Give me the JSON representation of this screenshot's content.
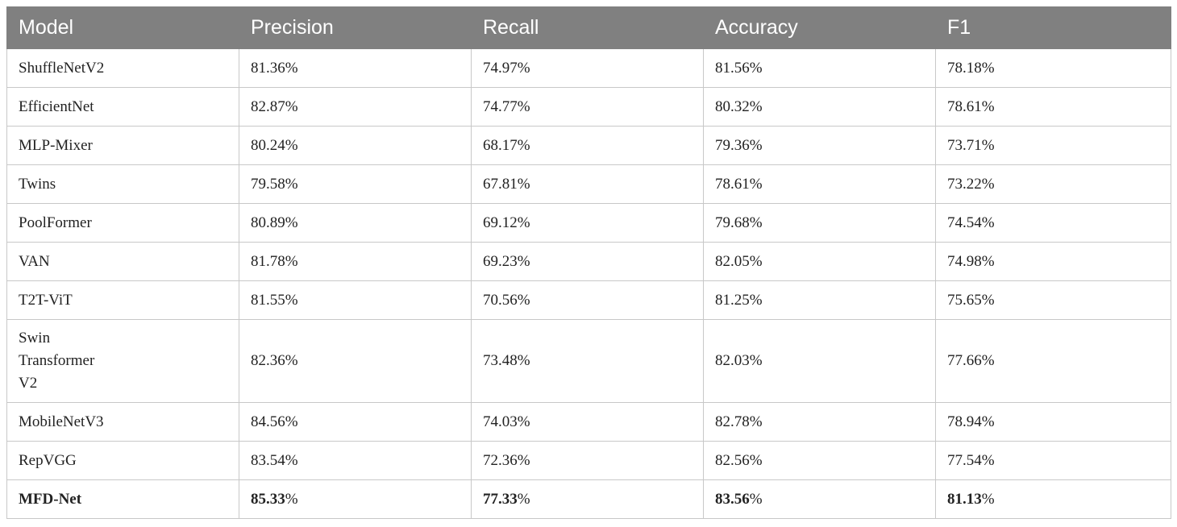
{
  "table": {
    "headers": [
      "Model",
      "Precision",
      "Recall",
      "Accuracy",
      "F1"
    ],
    "rows": [
      {
        "model": "ShuffleNetV2",
        "precision": "81.36%",
        "recall": "74.97%",
        "accuracy": "81.56%",
        "f1": "78.18%"
      },
      {
        "model": "EfficientNet",
        "precision": "82.87%",
        "recall": "74.77%",
        "accuracy": "80.32%",
        "f1": "78.61%"
      },
      {
        "model": "MLP-Mixer",
        "precision": "80.24%",
        "recall": "68.17%",
        "accuracy": "79.36%",
        "f1": "73.71%"
      },
      {
        "model": "Twins",
        "precision": "79.58%",
        "recall": "67.81%",
        "accuracy": "78.61%",
        "f1": "73.22%"
      },
      {
        "model": "PoolFormer",
        "precision": "80.89%",
        "recall": "69.12%",
        "accuracy": "79.68%",
        "f1": "74.54%"
      },
      {
        "model": "VAN",
        "precision": "81.78%",
        "recall": "69.23%",
        "accuracy": "82.05%",
        "f1": "74.98%"
      },
      {
        "model": "T2T-ViT",
        "precision": "81.55%",
        "recall": "70.56%",
        "accuracy": "81.25%",
        "f1": "75.65%"
      },
      {
        "model_lines": [
          "Swin",
          "Transformer",
          "V2"
        ],
        "precision": "82.36%",
        "recall": "73.48%",
        "accuracy": "82.03%",
        "f1": "77.66%"
      },
      {
        "model": "MobileNetV3",
        "precision": "84.56%",
        "recall": "74.03%",
        "accuracy": "82.78%",
        "f1": "78.94%"
      },
      {
        "model": "RepVGG",
        "precision": "83.54%",
        "recall": "72.36%",
        "accuracy": "82.56%",
        "f1": "77.54%"
      }
    ],
    "highlight_row": {
      "model": "MFD-Net",
      "precision_num": "85.33",
      "recall_num": "77.33",
      "accuracy_num": "83.56",
      "f1_num": "81.13",
      "percent_sign": "%"
    }
  },
  "colors": {
    "header_bg": "#808080",
    "header_text": "#ffffff",
    "grid": "#c8c8c8"
  }
}
